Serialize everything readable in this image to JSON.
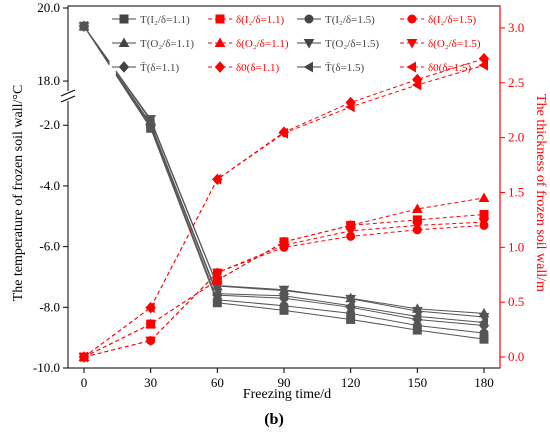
{
  "chart_data": {
    "type": "line",
    "panel_label": "(b)",
    "xlabel": "Freezing time/d",
    "ylabel_left": "The temperature of frozen soil wall/°C",
    "ylabel_right": "The thickness of frozen soil wall/m",
    "x": [
      0,
      30,
      60,
      90,
      120,
      150,
      180
    ],
    "x_ticks": [
      "0",
      "30",
      "60",
      "90",
      "120",
      "150",
      "180"
    ],
    "y_left_ticks": [
      "20.0",
      "18.0",
      "-2.0",
      "-4.0",
      "-6.0",
      "-8.0",
      "-10.0"
    ],
    "y_right_ticks": [
      "0.0",
      "0.5",
      "1.0",
      "1.5",
      "2.0",
      "2.5",
      "3.0"
    ],
    "y_left_axis": {
      "scale": "broken",
      "lower_range": [
        -10.0,
        -1.3
      ],
      "upper_range": [
        17.7,
        20.0
      ]
    },
    "y_right_range": [
      -0.1,
      3.2
    ],
    "colors": {
      "temperature": "#555555",
      "thickness": "#ff0000"
    },
    "legend": [
      {
        "id": "t_i2_11",
        "label": "T(I₂/δ=1.1)",
        "marker": "square"
      },
      {
        "id": "d_i2_11",
        "label": "δ(I₂/δ=1.1)",
        "marker": "square"
      },
      {
        "id": "t_i2_15",
        "label": "T(I₂/δ=1.5)",
        "marker": "circle"
      },
      {
        "id": "d_i2_15",
        "label": "δ(I₂/δ=1.5)",
        "marker": "circle"
      },
      {
        "id": "t_o2_11",
        "label": "T(O₂/δ=1.1)",
        "marker": "triangle-up"
      },
      {
        "id": "d_o2_11",
        "label": "δ(O₂/δ=1.1)",
        "marker": "triangle-up"
      },
      {
        "id": "t_o2_15",
        "label": "T(O₂/δ=1.5)",
        "marker": "triangle-down"
      },
      {
        "id": "d_o2_15",
        "label": "δ(O₂/δ=1.5)",
        "marker": "triangle-down"
      },
      {
        "id": "tbar_11",
        "label": "T̄(δ=1.1)",
        "marker": "diamond"
      },
      {
        "id": "d0_11",
        "label": "δ0(δ=1.1)",
        "marker": "diamond"
      },
      {
        "id": "tbar_15",
        "label": "T̄(δ=1.5)",
        "marker": "triangle-left"
      },
      {
        "id": "d0_15",
        "label": "δ0(δ=1.5)",
        "marker": "triangle-left"
      }
    ],
    "temperature_series": [
      {
        "id": "t_i2_11",
        "marker": "square",
        "values": [
          19.5,
          -2.1,
          -7.85,
          -8.1,
          -8.4,
          -8.75,
          -9.05
        ]
      },
      {
        "id": "t_i2_15",
        "marker": "circle",
        "values": [
          19.5,
          -2.05,
          -7.75,
          -7.95,
          -8.2,
          -8.6,
          -8.85
        ]
      },
      {
        "id": "t_o2_11",
        "marker": "triangle-up",
        "values": [
          19.5,
          -1.85,
          -7.3,
          -7.45,
          -7.7,
          -8.05,
          -8.2
        ]
      },
      {
        "id": "t_o2_15",
        "marker": "triangle-down",
        "values": [
          19.5,
          -1.8,
          -7.28,
          -7.42,
          -7.72,
          -8.12,
          -8.32
        ]
      },
      {
        "id": "tbar_11",
        "marker": "diamond",
        "values": [
          19.5,
          -2.0,
          -7.6,
          -7.7,
          -8.0,
          -8.4,
          -8.6
        ]
      },
      {
        "id": "tbar_15",
        "marker": "triangle-left",
        "values": [
          19.5,
          -1.95,
          -7.55,
          -7.62,
          -7.95,
          -8.3,
          -8.5
        ]
      }
    ],
    "thickness_series": [
      {
        "id": "d_i2_11",
        "marker": "square",
        "values": [
          0.0,
          0.3,
          0.7,
          1.05,
          1.2,
          1.25,
          1.3
        ]
      },
      {
        "id": "d_i2_15",
        "marker": "circle",
        "values": [
          0.0,
          0.15,
          0.77,
          1.0,
          1.1,
          1.16,
          1.2
        ]
      },
      {
        "id": "d_o2_11",
        "marker": "triangle-up",
        "values": [
          0.0,
          0.3,
          0.7,
          1.05,
          1.2,
          1.35,
          1.45
        ]
      },
      {
        "id": "d_o2_15",
        "marker": "triangle-down",
        "values": [
          0.0,
          0.15,
          0.77,
          1.02,
          1.15,
          1.2,
          1.23
        ]
      },
      {
        "id": "d0_11",
        "marker": "diamond",
        "values": [
          0.0,
          0.45,
          1.62,
          2.05,
          2.32,
          2.53,
          2.72
        ]
      },
      {
        "id": "d0_15",
        "marker": "triangle-left",
        "values": [
          0.0,
          0.45,
          1.62,
          2.04,
          2.28,
          2.48,
          2.66
        ]
      }
    ]
  }
}
